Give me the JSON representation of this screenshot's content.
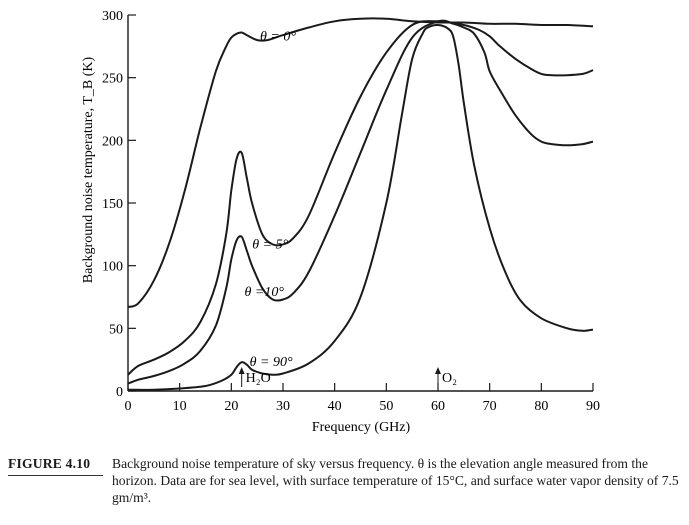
{
  "chart_data": {
    "type": "line",
    "xlabel": "Frequency (GHz)",
    "ylabel": "Background noise temperature, T_B (K)",
    "xlim": [
      0,
      90
    ],
    "ylim": [
      0,
      300
    ],
    "xticks": [
      0,
      10,
      20,
      30,
      40,
      50,
      60,
      70,
      80,
      90
    ],
    "yticks": [
      0,
      50,
      100,
      150,
      200,
      250,
      300
    ],
    "grid": false,
    "legend": "none (curves labeled inline)",
    "series": [
      {
        "name": "θ = 0°",
        "x": [
          0,
          2,
          5,
          8,
          11,
          14,
          17,
          19,
          20,
          21,
          22,
          23,
          25,
          27,
          30,
          35,
          40,
          45,
          50,
          55,
          60,
          65,
          70,
          75,
          80,
          85,
          90
        ],
        "y": [
          67,
          70,
          88,
          118,
          160,
          210,
          255,
          275,
          282,
          285,
          286,
          284,
          280,
          280,
          284,
          290,
          295,
          297,
          297,
          295,
          294,
          294,
          293,
          293,
          292,
          292,
          291
        ]
      },
      {
        "name": "θ = 5°",
        "x": [
          0,
          2,
          5,
          8,
          11,
          14,
          17,
          19,
          20,
          21,
          22,
          23,
          24,
          26,
          28,
          30,
          32,
          35,
          40,
          45,
          50,
          55,
          60,
          65,
          68,
          70,
          72,
          75,
          78,
          80,
          82,
          85,
          88,
          90
        ],
        "y": [
          13,
          20,
          25,
          31,
          40,
          55,
          85,
          125,
          160,
          185,
          190,
          170,
          150,
          125,
          117,
          117,
          122,
          140,
          190,
          235,
          270,
          292,
          295,
          292,
          288,
          283,
          275,
          265,
          257,
          253,
          252,
          252,
          253,
          256
        ]
      },
      {
        "name": "θ = 10°",
        "x": [
          0,
          2,
          5,
          8,
          11,
          14,
          17,
          19,
          20,
          21,
          22,
          23,
          24,
          26,
          28,
          30,
          32,
          35,
          40,
          45,
          50,
          55,
          60,
          63,
          65,
          67,
          69,
          70,
          72,
          75,
          78,
          80,
          82,
          85,
          88,
          90
        ],
        "y": [
          6,
          9,
          12,
          16,
          22,
          32,
          52,
          82,
          105,
          120,
          123,
          112,
          100,
          82,
          73,
          73,
          78,
          95,
          140,
          190,
          240,
          282,
          295,
          293,
          290,
          285,
          270,
          255,
          240,
          220,
          205,
          199,
          197,
          196,
          197,
          199
        ]
      },
      {
        "name": "θ = 90°",
        "x": [
          0,
          5,
          10,
          15,
          18,
          20,
          21,
          22,
          23,
          24,
          26,
          28,
          30,
          35,
          40,
          45,
          50,
          53,
          55,
          57,
          58,
          60,
          62,
          63,
          64,
          65,
          67,
          70,
          73,
          76,
          80,
          85,
          88,
          90
        ],
        "y": [
          1,
          1,
          2,
          4,
          8,
          13,
          19,
          23,
          21,
          17,
          14,
          13,
          14,
          22,
          40,
          75,
          150,
          220,
          265,
          285,
          290,
          292,
          289,
          282,
          260,
          230,
          180,
          130,
          95,
          72,
          58,
          50,
          48,
          49
        ]
      }
    ],
    "curve_labels": [
      "θ = 0°",
      "θ = 5°",
      "θ =10°",
      "θ = 90°"
    ],
    "annotations": [
      {
        "text": "H₂O",
        "x": 22
      },
      {
        "text": "O₂",
        "x": 60
      }
    ]
  },
  "caption": {
    "label": "FIGURE 4.10",
    "text": "Background noise temperature of sky versus frequency. θ is the elevation angle measured from the horizon. Data are for sea level, with surface temperature of 15°C, and surface water vapor density of 7.5 gm/m³."
  }
}
